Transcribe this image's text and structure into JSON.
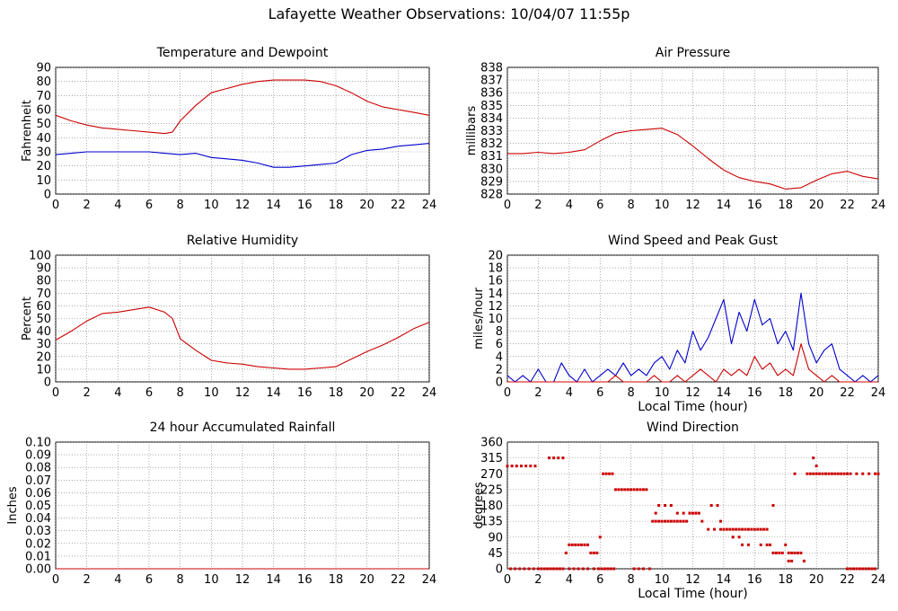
{
  "page_title": "Lafayette Weather Observations: 10/04/07 11:55p",
  "chart_data": [
    {
      "id": "temp",
      "type": "line",
      "title": "Temperature and Dewpoint",
      "ylabel": "Fahrenheit",
      "xlabel": "",
      "xlim": [
        0,
        24
      ],
      "ylim": [
        0,
        90
      ],
      "xticks": [
        0,
        2,
        4,
        6,
        8,
        10,
        12,
        14,
        16,
        18,
        20,
        22,
        24
      ],
      "yticks": [
        0,
        10,
        20,
        30,
        40,
        50,
        60,
        70,
        80,
        90
      ],
      "grid": true,
      "colors": {
        "temperature": "#cc0000",
        "dewpoint": "#0000cc"
      },
      "series": [
        {
          "key": "temperature",
          "color": "#cc0000",
          "x": [
            0,
            1,
            2,
            3,
            4,
            5,
            6,
            7,
            7.5,
            8,
            9,
            10,
            11,
            12,
            13,
            14,
            15,
            16,
            17,
            18,
            19,
            20,
            21,
            22,
            23,
            24
          ],
          "y": [
            56,
            52,
            49,
            47,
            46,
            45,
            44,
            43,
            44,
            52,
            63,
            72,
            75,
            78,
            80,
            81,
            81,
            81,
            80,
            77,
            72,
            66,
            62,
            60,
            58,
            56
          ]
        },
        {
          "key": "dewpoint",
          "color": "#0000cc",
          "x": [
            0,
            1,
            2,
            3,
            4,
            5,
            6,
            7,
            8,
            9,
            10,
            11,
            12,
            13,
            14,
            15,
            16,
            17,
            18,
            19,
            20,
            21,
            22,
            23,
            24
          ],
          "y": [
            28,
            29,
            30,
            30,
            30,
            30,
            30,
            29,
            28,
            29,
            26,
            25,
            24,
            22,
            19,
            19,
            20,
            21,
            22,
            28,
            31,
            32,
            34,
            35,
            36
          ]
        }
      ]
    },
    {
      "id": "pressure",
      "type": "line",
      "title": "Air Pressure",
      "ylabel": "millibars",
      "xlabel": "",
      "xlim": [
        0,
        24
      ],
      "ylim": [
        828,
        838
      ],
      "xticks": [
        0,
        2,
        4,
        6,
        8,
        10,
        12,
        14,
        16,
        18,
        20,
        22,
        24
      ],
      "yticks": [
        828,
        829,
        830,
        831,
        832,
        833,
        834,
        835,
        836,
        837,
        838
      ],
      "grid": true,
      "colors": {
        "pressure": "#cc0000"
      },
      "series": [
        {
          "key": "pressure",
          "color": "#cc0000",
          "x": [
            0,
            1,
            2,
            3,
            4,
            5,
            6,
            7,
            8,
            9,
            10,
            11,
            12,
            13,
            14,
            15,
            16,
            17,
            18,
            19,
            20,
            21,
            22,
            23,
            24
          ],
          "y": [
            831.2,
            831.2,
            831.3,
            831.2,
            831.3,
            831.5,
            832.2,
            832.8,
            833.0,
            833.1,
            833.2,
            832.7,
            831.8,
            830.8,
            829.9,
            829.3,
            829.0,
            828.8,
            828.4,
            828.5,
            829.1,
            829.6,
            829.8,
            829.4,
            829.2
          ]
        }
      ]
    },
    {
      "id": "humidity",
      "type": "line",
      "title": "Relative Humidity",
      "ylabel": "Percent",
      "xlabel": "",
      "xlim": [
        0,
        24
      ],
      "ylim": [
        0,
        100
      ],
      "xticks": [
        0,
        2,
        4,
        6,
        8,
        10,
        12,
        14,
        16,
        18,
        20,
        22,
        24
      ],
      "yticks": [
        0,
        10,
        20,
        30,
        40,
        50,
        60,
        70,
        80,
        90,
        100
      ],
      "grid": true,
      "colors": {
        "humidity": "#cc0000"
      },
      "series": [
        {
          "key": "humidity",
          "color": "#cc0000",
          "x": [
            0,
            1,
            2,
            3,
            4,
            5,
            6,
            7,
            7.5,
            8,
            9,
            10,
            11,
            12,
            13,
            14,
            15,
            16,
            17,
            18,
            19,
            20,
            21,
            22,
            23,
            24
          ],
          "y": [
            33,
            40,
            48,
            54,
            55,
            57,
            59,
            55,
            50,
            34,
            25,
            17,
            15,
            14,
            12,
            11,
            10,
            10,
            11,
            12,
            18,
            24,
            29,
            35,
            42,
            47
          ]
        }
      ]
    },
    {
      "id": "wind",
      "type": "line",
      "title": "Wind Speed and Peak Gust",
      "ylabel": "miles/hour",
      "xlabel": "Local Time (hour)",
      "xlim": [
        0,
        24
      ],
      "ylim": [
        0,
        20
      ],
      "xticks": [
        0,
        2,
        4,
        6,
        8,
        10,
        12,
        14,
        16,
        18,
        20,
        22,
        24
      ],
      "yticks": [
        0,
        2,
        4,
        6,
        8,
        10,
        12,
        14,
        16,
        18,
        20
      ],
      "grid": true,
      "colors": {
        "gust": "#0000cc",
        "speed": "#cc0000"
      },
      "series": [
        {
          "key": "gust",
          "color": "#0000cc",
          "x": [
            0,
            0.5,
            1,
            1.5,
            2,
            2.5,
            3,
            3.5,
            4,
            4.5,
            5,
            5.5,
            6,
            6.5,
            7,
            7.5,
            8,
            8.5,
            9,
            9.5,
            10,
            10.5,
            11,
            11.5,
            12,
            12.5,
            13,
            13.5,
            14,
            14.5,
            15,
            15.5,
            16,
            16.5,
            17,
            17.5,
            18,
            18.5,
            19,
            19.5,
            20,
            20.5,
            21,
            21.5,
            22,
            22.5,
            23,
            23.5,
            24
          ],
          "y": [
            1,
            0,
            1,
            0,
            2,
            0,
            0,
            3,
            1,
            0,
            2,
            0,
            1,
            2,
            1,
            3,
            1,
            2,
            1,
            3,
            4,
            2,
            5,
            3,
            8,
            5,
            7,
            10,
            13,
            6,
            11,
            8,
            13,
            9,
            10,
            6,
            8,
            5,
            14,
            6,
            3,
            5,
            6,
            2,
            1,
            0,
            1,
            0,
            1
          ]
        },
        {
          "key": "speed",
          "color": "#cc0000",
          "x": [
            0,
            0.5,
            1,
            1.5,
            2,
            2.5,
            3,
            3.5,
            4,
            4.5,
            5,
            5.5,
            6,
            6.5,
            7,
            7.5,
            8,
            8.5,
            9,
            9.5,
            10,
            10.5,
            11,
            11.5,
            12,
            12.5,
            13,
            13.5,
            14,
            14.5,
            15,
            15.5,
            16,
            16.5,
            17,
            17.5,
            18,
            18.5,
            19,
            19.5,
            20,
            20.5,
            21,
            21.5,
            22,
            22.5,
            23,
            23.5,
            24
          ],
          "y": [
            0,
            0,
            0,
            0,
            0,
            0,
            0,
            0,
            0,
            0,
            0,
            0,
            0,
            0,
            1,
            0,
            0,
            0,
            0,
            1,
            0,
            0,
            1,
            0,
            1,
            2,
            1,
            0,
            2,
            1,
            2,
            1,
            4,
            2,
            3,
            1,
            2,
            1,
            6,
            2,
            1,
            0,
            1,
            0,
            0,
            0,
            0,
            0,
            0
          ]
        }
      ]
    },
    {
      "id": "rain",
      "type": "line",
      "title": "24 hour Accumulated Rainfall",
      "ylabel": "Inches",
      "xlabel": "",
      "xlim": [
        0,
        24
      ],
      "ylim": [
        0,
        0.1
      ],
      "xticks": [
        0,
        2,
        4,
        6,
        8,
        10,
        12,
        14,
        16,
        18,
        20,
        22,
        24
      ],
      "yticks": [
        "0.00",
        "0.01",
        "0.02",
        "0.03",
        "0.04",
        "0.05",
        "0.06",
        "0.07",
        "0.08",
        "0.09",
        "0.10"
      ],
      "grid": true,
      "colors": {
        "rainfall": "#cc0000"
      },
      "series": [
        {
          "key": "rainfall",
          "color": "#cc0000",
          "x": [
            0,
            24
          ],
          "y": [
            0,
            0
          ]
        }
      ]
    },
    {
      "id": "direction",
      "type": "scatter",
      "title": "Wind Direction",
      "ylabel": "degrees",
      "xlabel": "Local Time (hour)",
      "xlim": [
        0,
        24
      ],
      "ylim": [
        0,
        360
      ],
      "xticks": [
        0,
        2,
        4,
        6,
        8,
        10,
        12,
        14,
        16,
        18,
        20,
        22,
        24
      ],
      "yticks": [
        0,
        45,
        90,
        135,
        180,
        225,
        270,
        315,
        360
      ],
      "grid": true,
      "colors": {
        "direction": "#cc0000"
      },
      "series": [
        {
          "key": "direction",
          "color": "#cc0000",
          "x": [
            0,
            0.3,
            0.6,
            0.9,
            1.2,
            1.5,
            1.8,
            0.2,
            0.5,
            0.8,
            1.1,
            1.4,
            1.7,
            2.0,
            2.2,
            2.4,
            2.6,
            2.8,
            3.0,
            3.2,
            3.4,
            3.6,
            2.7,
            3.0,
            3.3,
            3.6,
            3.8,
            4.0,
            4.2,
            4.4,
            4.6,
            4.8,
            5.0,
            5.2,
            5.4,
            5.6,
            5.8,
            6.0,
            6.2,
            6.4,
            6.6,
            6.8,
            4.0,
            4.3,
            4.6,
            4.9,
            5.2,
            5.6,
            5.9,
            6.1,
            6.3,
            6.5,
            6.7,
            6.9,
            7.0,
            7.2,
            7.4,
            7.6,
            7.8,
            8.0,
            8.2,
            8.4,
            8.6,
            8.8,
            9.0,
            8.2,
            8.5,
            8.8,
            9.2,
            9.4,
            9.6,
            9.8,
            10.0,
            10.2,
            10.4,
            10.6,
            10.8,
            11.0,
            11.2,
            11.4,
            11.6,
            11.8,
            12.0,
            12.2,
            12.4,
            9.6,
            9.8,
            10.2,
            10.6,
            11.0,
            11.4,
            11.8,
            12.2,
            12.6,
            13.0,
            13.4,
            13.8,
            14.0,
            14.2,
            14.4,
            14.6,
            14.8,
            15.0,
            15.2,
            15.4,
            15.6,
            15.8,
            16.0,
            16.2,
            16.4,
            16.6,
            16.8,
            17.0,
            17.2,
            13.2,
            13.6,
            13.8,
            14.6,
            15.0,
            15.2,
            15.6,
            16.4,
            16.8,
            17.2,
            17.4,
            17.6,
            17.8,
            18.0,
            18.2,
            18.4,
            18.6,
            18.8,
            19.0,
            19.2,
            18.2,
            18.4,
            18.6,
            19.4,
            19.6,
            19.8,
            20.0,
            20.2,
            20.4,
            20.6,
            20.8,
            21.0,
            21.2,
            21.4,
            21.6,
            21.8,
            22.0,
            22.2,
            22.6,
            23.0,
            23.4,
            23.8,
            24.0,
            19.8,
            20.0,
            22.0,
            22.2,
            22.4,
            22.6,
            22.8,
            23.0,
            23.2,
            23.4,
            23.6,
            23.8
          ],
          "y": [
            292,
            292,
            292,
            292,
            292,
            292,
            292,
            0,
            0,
            0,
            0,
            0,
            0,
            0,
            0,
            0,
            0,
            0,
            0,
            0,
            0,
            0,
            315,
            315,
            315,
            315,
            45,
            68,
            68,
            68,
            68,
            68,
            68,
            68,
            45,
            45,
            45,
            90,
            270,
            270,
            270,
            270,
            0,
            0,
            0,
            0,
            0,
            0,
            0,
            0,
            0,
            0,
            0,
            0,
            225,
            225,
            225,
            225,
            225,
            225,
            225,
            225,
            225,
            225,
            225,
            0,
            0,
            0,
            0,
            135,
            135,
            135,
            135,
            135,
            135,
            135,
            135,
            135,
            135,
            135,
            135,
            158,
            158,
            158,
            158,
            158,
            180,
            180,
            180,
            158,
            158,
            158,
            158,
            135,
            112,
            112,
            112,
            112,
            112,
            112,
            112,
            112,
            112,
            112,
            112,
            112,
            112,
            112,
            112,
            112,
            112,
            112,
            68,
            180,
            180,
            180,
            135,
            90,
            90,
            68,
            68,
            68,
            68,
            45,
            45,
            45,
            45,
            68,
            45,
            45,
            45,
            45,
            45,
            22,
            22,
            22,
            270,
            270,
            270,
            270,
            270,
            270,
            270,
            270,
            270,
            270,
            270,
            270,
            270,
            270,
            270,
            270,
            270,
            270,
            270,
            270,
            270,
            315,
            292,
            0,
            0,
            0,
            0,
            0,
            0,
            0,
            0,
            0,
            0
          ]
        }
      ]
    }
  ]
}
